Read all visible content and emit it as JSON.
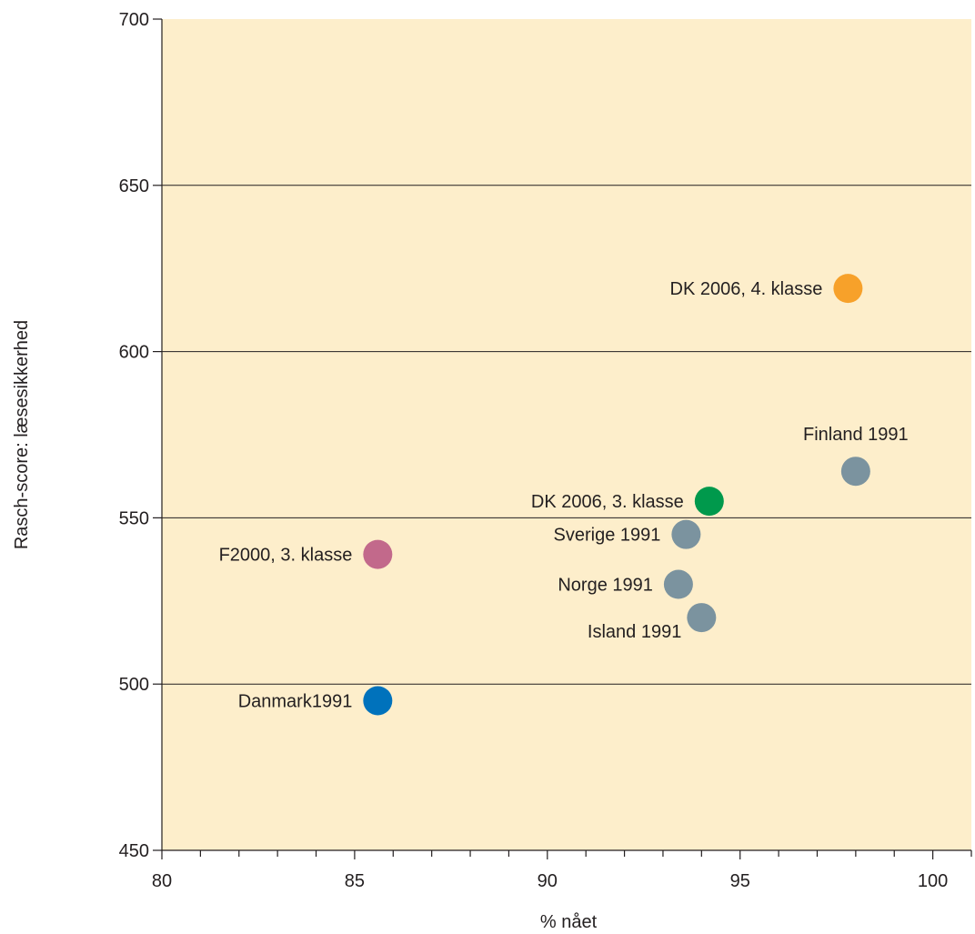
{
  "chart_data": {
    "type": "scatter",
    "title": "",
    "xlabel": "% nået",
    "ylabel": "Rasch-score: læsesikkerhed",
    "xlim": [
      80,
      101
    ],
    "ylim": [
      450,
      700
    ],
    "xticks": [
      "80",
      "85",
      "90",
      "95",
      "100"
    ],
    "yticks": [
      "700",
      "650",
      "600",
      "550",
      "500",
      "450"
    ],
    "grid": "horizontal",
    "plot_background": "#fdeecb",
    "points": [
      {
        "label": "DK 2006, 4. klasse",
        "x": 97.8,
        "y": 619,
        "color": "#f7a12a",
        "label_side": "left"
      },
      {
        "label": "Finland 1991",
        "x": 98.0,
        "y": 564,
        "color": "#7b939f",
        "label_side": "above"
      },
      {
        "label": "DK 2006, 3. klasse",
        "x": 94.2,
        "y": 555,
        "color": "#00994c",
        "label_side": "left"
      },
      {
        "label": "Sverige 1991",
        "x": 93.6,
        "y": 545,
        "color": "#7b939f",
        "label_side": "left"
      },
      {
        "label": "F2000, 3. klasse",
        "x": 85.6,
        "y": 539,
        "color": "#c2698b",
        "label_side": "left"
      },
      {
        "label": "Norge 1991",
        "x": 93.4,
        "y": 530,
        "color": "#7b939f",
        "label_side": "left"
      },
      {
        "label": "Island 1991",
        "x": 94.0,
        "y": 520,
        "color": "#7b939f",
        "label_side": "below-left"
      },
      {
        "label": "Danmark1991",
        "x": 85.6,
        "y": 495,
        "color": "#0072bc",
        "label_side": "left"
      }
    ]
  }
}
